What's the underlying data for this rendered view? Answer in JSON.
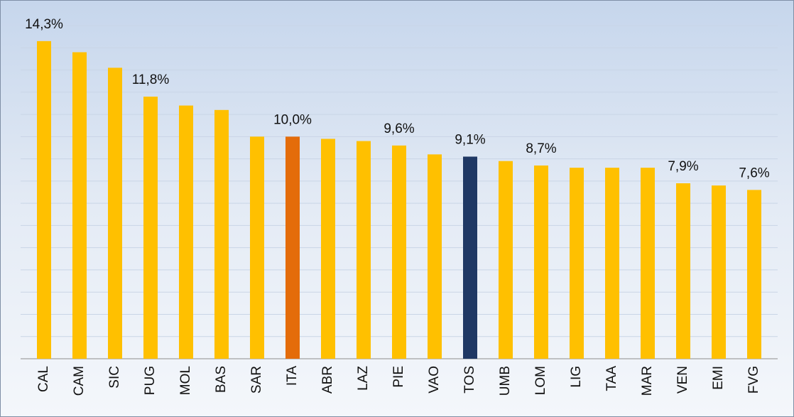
{
  "chart_data": {
    "type": "bar",
    "categories": [
      "CAL",
      "CAM",
      "SIC",
      "PUG",
      "MOL",
      "BAS",
      "SAR",
      "ITA",
      "ABR",
      "LAZ",
      "PIE",
      "VAO",
      "TOS",
      "UMB",
      "LOM",
      "LIG",
      "TAA",
      "MAR",
      "VEN",
      "EMI",
      "FVG"
    ],
    "values": [
      14.3,
      13.8,
      13.1,
      11.8,
      11.4,
      11.2,
      10.0,
      10.0,
      9.9,
      9.8,
      9.6,
      9.2,
      9.1,
      8.9,
      8.7,
      8.6,
      8.6,
      8.6,
      7.9,
      7.8,
      7.6
    ],
    "value_labels": [
      "14,3%",
      null,
      null,
      "11,8%",
      null,
      null,
      null,
      "10,0%",
      null,
      null,
      "9,6%",
      null,
      "9,1%",
      null,
      "8,7%",
      null,
      null,
      null,
      "7,9%",
      null,
      "7,6%"
    ],
    "colors": [
      "#FFC000",
      "#FFC000",
      "#FFC000",
      "#FFC000",
      "#FFC000",
      "#FFC000",
      "#FFC000",
      "#E46C0A",
      "#FFC000",
      "#FFC000",
      "#FFC000",
      "#FFC000",
      "#1F3864",
      "#FFC000",
      "#FFC000",
      "#FFC000",
      "#FFC000",
      "#FFC000",
      "#FFC000",
      "#FFC000",
      "#FFC000"
    ],
    "ylim": [
      0,
      15
    ],
    "yticks": [
      0,
      1,
      2,
      3,
      4,
      5,
      6,
      7,
      8,
      9,
      10,
      11,
      12,
      13,
      14,
      15
    ],
    "grid": true
  }
}
